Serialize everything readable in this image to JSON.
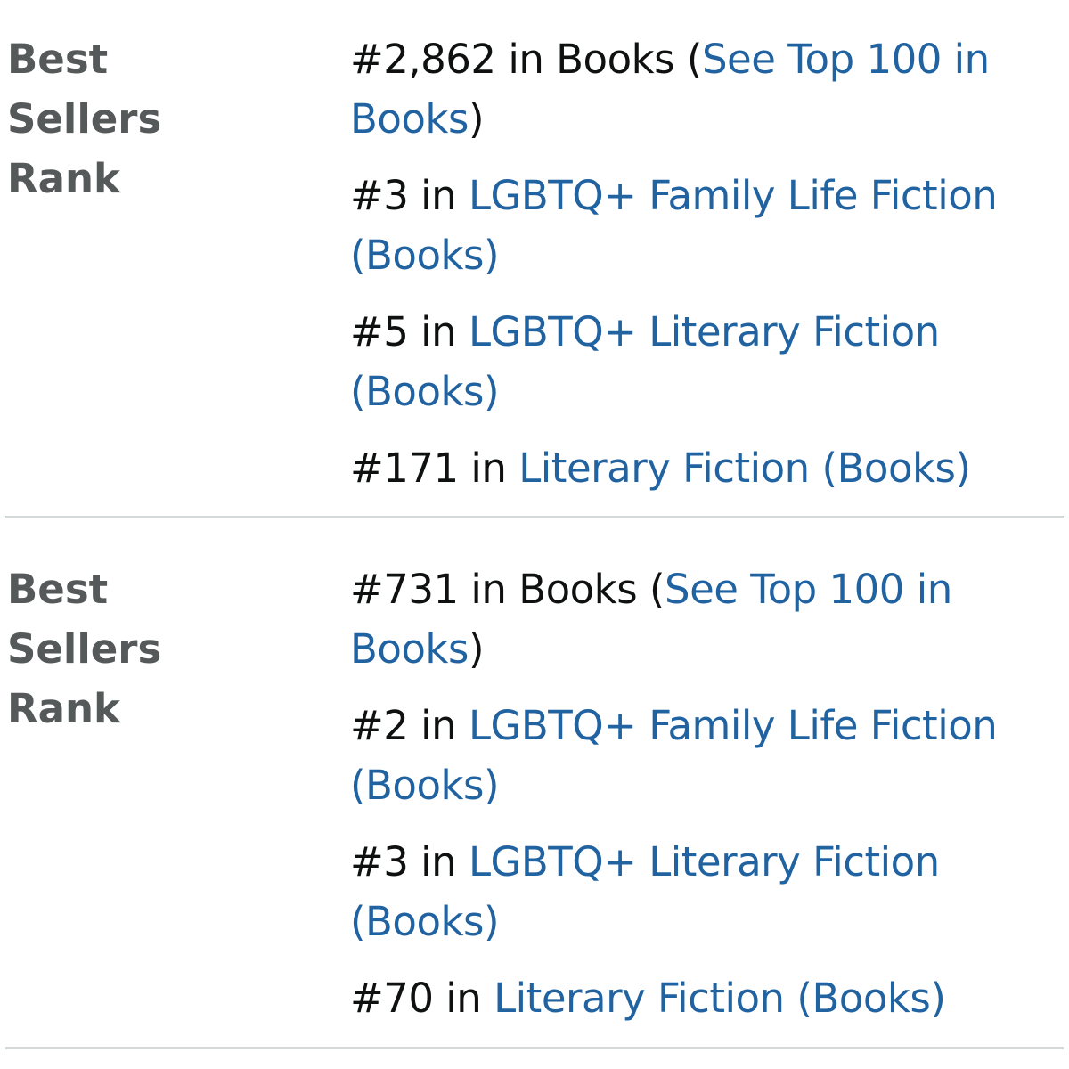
{
  "sections": [
    {
      "label_lines": [
        "Best",
        "Sellers",
        "Rank"
      ],
      "ranks": [
        {
          "prefix": "#2,862 in Books (",
          "link": "See Top 100 in Books",
          "suffix": ")"
        },
        {
          "prefix": "#3 in ",
          "link": "LGBTQ+ Family Life Fiction (Books)",
          "suffix": ""
        },
        {
          "prefix": "#5 in ",
          "link": "LGBTQ+ Literary Fiction (Books)",
          "suffix": ""
        },
        {
          "prefix": "#171 in ",
          "link": "Literary Fiction (Books)",
          "suffix": ""
        }
      ]
    },
    {
      "label_lines": [
        "Best",
        "Sellers",
        "Rank"
      ],
      "ranks": [
        {
          "prefix": "#731 in Books (",
          "link": "See Top 100 in Books",
          "suffix": ")"
        },
        {
          "prefix": "#2 in ",
          "link": "LGBTQ+ Family Life Fiction (Books)",
          "suffix": ""
        },
        {
          "prefix": "#3 in ",
          "link": "LGBTQ+ Literary Fiction (Books)",
          "suffix": ""
        },
        {
          "prefix": "#70 in ",
          "link": "Literary Fiction (Books)",
          "suffix": ""
        }
      ]
    }
  ],
  "colors": {
    "label": "#565959",
    "text": "#0f1111",
    "link": "#2162a1",
    "divider": "#d5d9d9"
  }
}
